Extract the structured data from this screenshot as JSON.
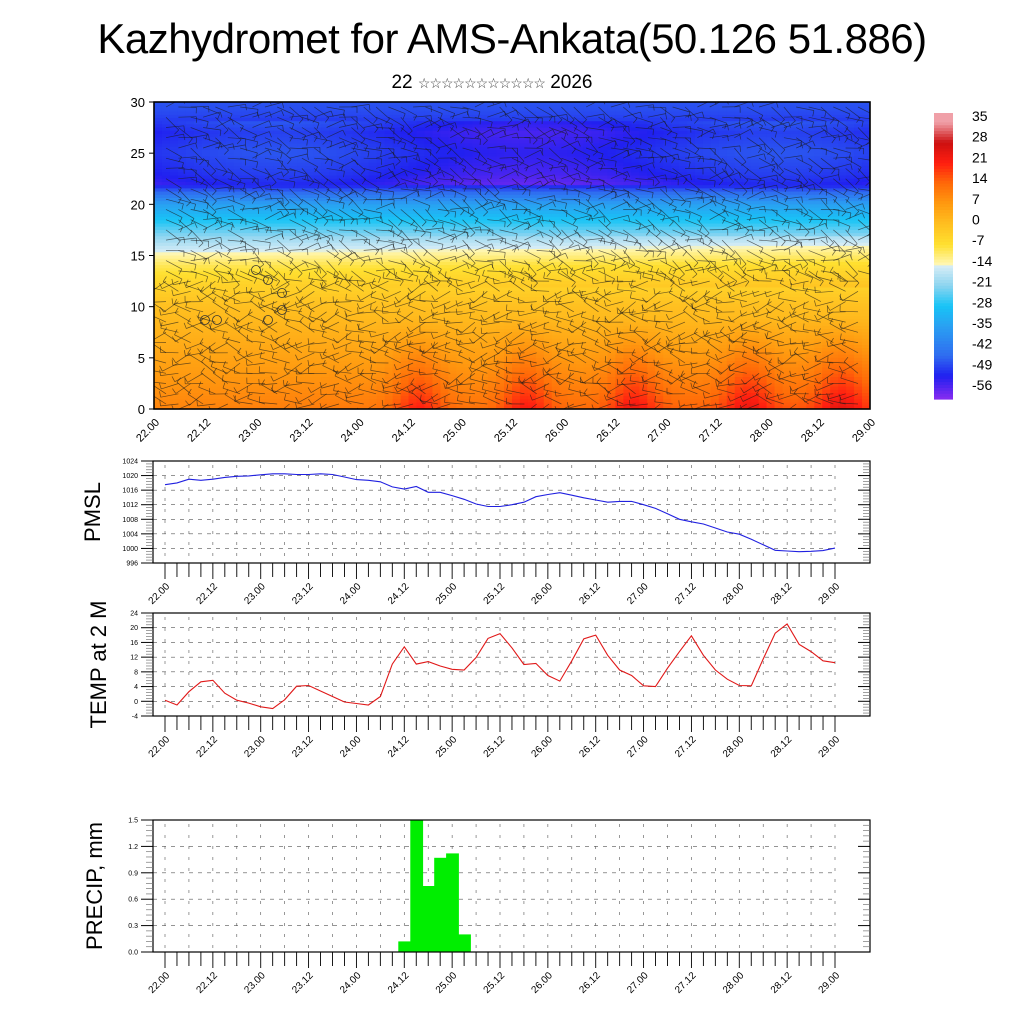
{
  "title": "Kazhydromet for AMS-Ankata(50.126 51.886)",
  "subtitle": {
    "day": "22",
    "month_glyphs": "☆☆☆☆☆☆☆☆☆☆☆",
    "year": "2026"
  },
  "chart_data": [
    {
      "type": "heatmap",
      "name": "vertical-cross-section",
      "description": "Temperature (color) with wind barbs by height level over time",
      "y_ticks": [
        "0",
        "5",
        "10",
        "15",
        "20",
        "25",
        "30"
      ],
      "ylim": [
        0,
        30
      ],
      "x_ticks": [
        "22.00",
        "22.12",
        "23.00",
        "23.12",
        "24.00",
        "24.12",
        "25.00",
        "25.12",
        "26.00",
        "26.12",
        "27.00",
        "27.12",
        "28.00",
        "28.12",
        "29.00"
      ],
      "colorbar": {
        "labels": [
          "35",
          "28",
          "21",
          "14",
          "7",
          "0",
          "-7",
          "-14",
          "-21",
          "-28",
          "-35",
          "-42",
          "-49",
          "-56"
        ],
        "range": [
          -60,
          38
        ],
        "stops": [
          {
            "v": -60,
            "c": "#8a2cf0"
          },
          {
            "v": -52,
            "c": "#2020f0"
          },
          {
            "v": -45,
            "c": "#2f6cf0"
          },
          {
            "v": -35,
            "c": "#2aa0f2"
          },
          {
            "v": -28,
            "c": "#18c4f6"
          },
          {
            "v": -21,
            "c": "#8cd4f0"
          },
          {
            "v": -14.5,
            "c": "#d4ecf6"
          },
          {
            "v": -13.5,
            "c": "#fff6b0"
          },
          {
            "v": -7,
            "c": "#ffe030"
          },
          {
            "v": 0,
            "c": "#ffc020"
          },
          {
            "v": 7,
            "c": "#ff9a10"
          },
          {
            "v": 14,
            "c": "#ff6a08"
          },
          {
            "v": 21,
            "c": "#ff1e10"
          },
          {
            "v": 28,
            "c": "#cc1010"
          },
          {
            "v": 35,
            "c": "#f0a0a8"
          }
        ]
      },
      "temperature_profile": {
        "levels": [
          0,
          2,
          5,
          8,
          10,
          12,
          14,
          15,
          16,
          18,
          20,
          21.5,
          22,
          23,
          25,
          27,
          29,
          30.5
        ],
        "mean_values": [
          10,
          8,
          5,
          2,
          0,
          -4,
          -9,
          -13,
          -17,
          -26,
          -35,
          -48,
          -54,
          -52,
          -50,
          -52,
          -48,
          -47
        ]
      }
    },
    {
      "type": "line",
      "name": "pmsl",
      "ylabel": "PMSL",
      "ylim": [
        996,
        1024
      ],
      "y_ticks": [
        "996",
        "1000",
        "1004",
        "1008",
        "1012",
        "1016",
        "1020",
        "1024"
      ],
      "x_ticks": [
        "22.00",
        "22.12",
        "23.00",
        "23.12",
        "24.00",
        "24.12",
        "25.00",
        "25.12",
        "26.00",
        "26.12",
        "27.00",
        "27.12",
        "28.00",
        "28.12",
        "29.00"
      ],
      "step_hours": 3,
      "color": "#2020e0",
      "values": [
        1017.5,
        1018,
        1019,
        1018.7,
        1019,
        1019.5,
        1019.8,
        1019.9,
        1020.2,
        1020.5,
        1020.5,
        1020.3,
        1020.3,
        1020.5,
        1020.3,
        1019.6,
        1018.9,
        1018.7,
        1018.3,
        1016.9,
        1016.3,
        1017,
        1015.4,
        1015.4,
        1014.5,
        1013.5,
        1012.2,
        1011.5,
        1011.5,
        1012,
        1012.7,
        1014.2,
        1014.8,
        1015.3,
        1014.6,
        1013.9,
        1013.3,
        1012.7,
        1012.9,
        1012.9,
        1012,
        1011,
        1009.5,
        1008,
        1007.3,
        1006.7,
        1005.6,
        1004.5,
        1003.9,
        1002.5,
        1001,
        999.5,
        999.3,
        999.1,
        999.2,
        999.4,
        1000.1
      ]
    },
    {
      "type": "line",
      "name": "temp-2m",
      "ylabel": "TEMP at 2 M",
      "ylim": [
        -4,
        24
      ],
      "y_ticks": [
        "-4",
        "0",
        "4",
        "8",
        "12",
        "16",
        "20",
        "24"
      ],
      "x_ticks": [
        "22.00",
        "22.12",
        "23.00",
        "23.12",
        "24.00",
        "24.12",
        "25.00",
        "25.12",
        "26.00",
        "26.12",
        "27.00",
        "27.12",
        "28.00",
        "28.12",
        "29.00"
      ],
      "step_hours": 3,
      "color": "#e01818",
      "values": [
        0.3,
        -1,
        2.6,
        5.3,
        5.7,
        2.2,
        0.3,
        -0.5,
        -1.5,
        -2,
        0.4,
        4.1,
        4.3,
        2.8,
        1.3,
        -0.2,
        -0.6,
        -1,
        1.3,
        10.1,
        14.8,
        10.1,
        10.8,
        9.6,
        8.7,
        8.5,
        11.9,
        17.1,
        18.4,
        14.5,
        10,
        10.3,
        7,
        5.5,
        11,
        17,
        18,
        12.5,
        8.5,
        7,
        4.2,
        4,
        9,
        13.5,
        17.8,
        12.5,
        8.5,
        6,
        4.3,
        4.2,
        11.5,
        18.5,
        21,
        15.5,
        13.5,
        11,
        10.5
      ]
    },
    {
      "type": "bar",
      "name": "precip",
      "ylabel": "PRECIP, mm",
      "ylim": [
        0,
        1.5
      ],
      "y_ticks": [
        "0.0",
        "0.3",
        "0.6",
        "0.9",
        "1.2",
        "1.5"
      ],
      "x_ticks": [
        "22.00",
        "22.12",
        "23.00",
        "23.12",
        "24.00",
        "24.12",
        "25.00",
        "25.12",
        "26.00",
        "26.12",
        "27.00",
        "27.12",
        "28.00",
        "28.12",
        "29.00"
      ],
      "step_hours": 3,
      "color": "#00ee00",
      "bars": [
        {
          "start_step": 20,
          "value": 0.12
        },
        {
          "start_step": 21,
          "value": 1.5
        },
        {
          "start_step": 22,
          "value": 0.75
        },
        {
          "start_step": 23,
          "value": 1.07
        },
        {
          "start_step": 24,
          "value": 1.12
        },
        {
          "start_step": 25,
          "value": 0.2
        }
      ]
    }
  ]
}
